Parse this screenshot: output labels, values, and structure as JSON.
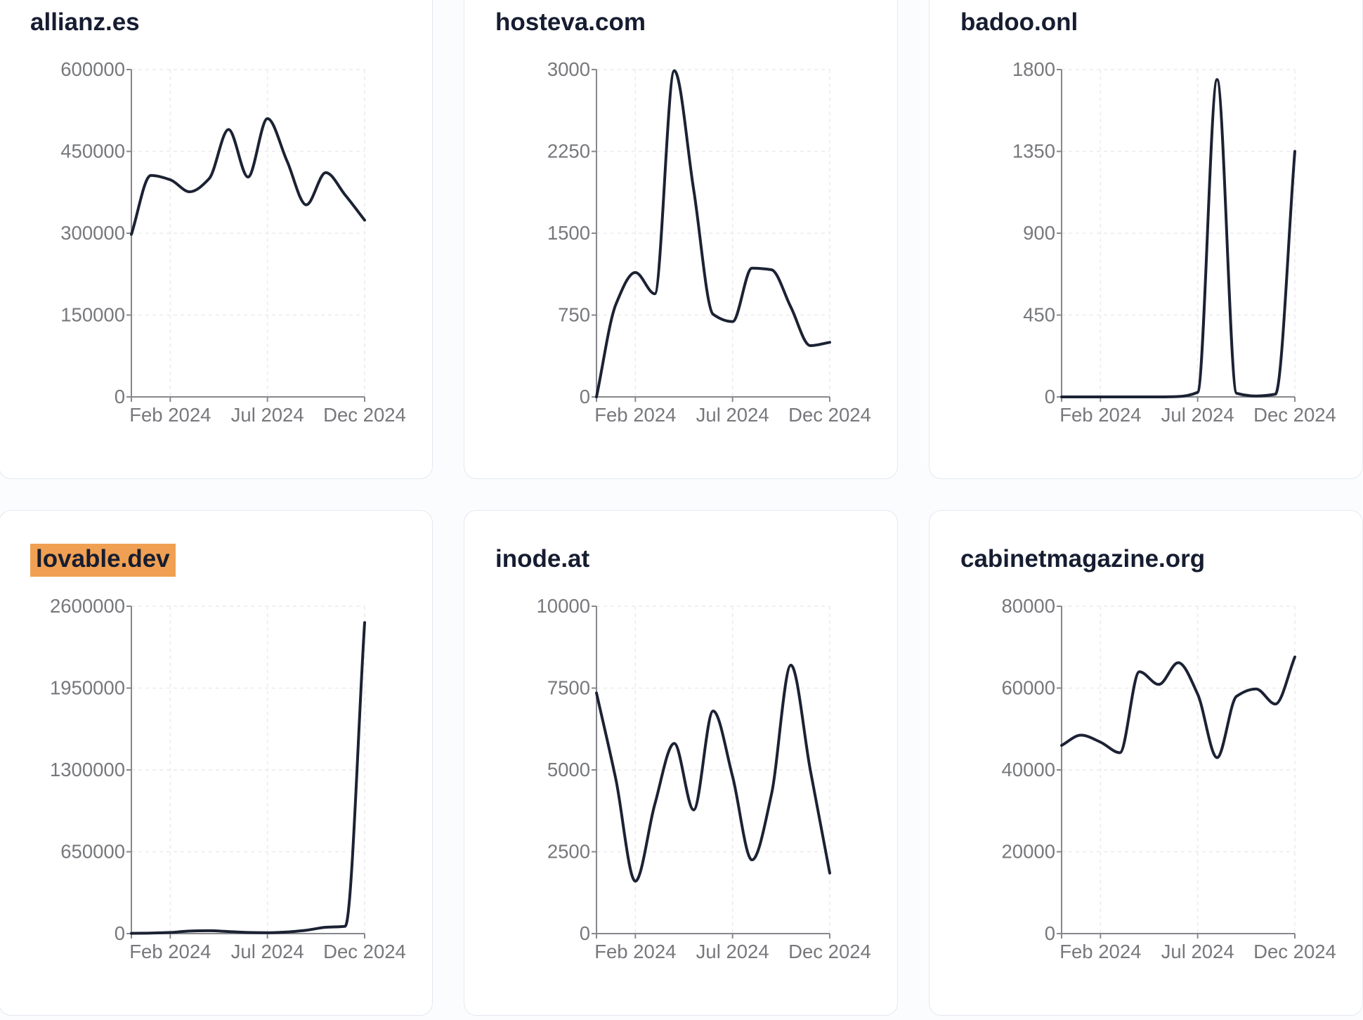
{
  "style": {
    "page_bg": "#fbfcfd",
    "card_bg": "#ffffff",
    "card_border": "#e4e8f0",
    "title_color": "#161d31",
    "highlight_color": "#f0a052",
    "line_color": "#1b2233",
    "axis_color": "#86888d",
    "grid_color": "#ebebee",
    "tick_label_color": "#77787c"
  },
  "chart_data": [
    {
      "type": "line",
      "title": "allianz.es",
      "title_highlighted": false,
      "x": [
        "Dec 2023",
        "Jan 2024",
        "Feb 2024",
        "Mar 2024",
        "Apr 2024",
        "May 2024",
        "Jun 2024",
        "Jul 2024",
        "Aug 2024",
        "Sep 2024",
        "Oct 2024",
        "Nov 2024",
        "Dec 2024"
      ],
      "values": [
        298000,
        406000,
        398000,
        376000,
        400000,
        490000,
        403000,
        510000,
        433000,
        352000,
        411000,
        370000,
        324000
      ],
      "ylim": [
        0,
        600000
      ],
      "y_tick_labels": [
        "0",
        "150000",
        "300000",
        "450000",
        "600000"
      ],
      "x_tick_labels": [
        "Feb 2024",
        "Jul 2024",
        "Dec 2024"
      ],
      "grid": "dashed",
      "legend": "none"
    },
    {
      "type": "line",
      "title": "hosteva.com",
      "title_highlighted": false,
      "x": [
        "Dec 2023",
        "Jan 2024",
        "Feb 2024",
        "Mar 2024",
        "Apr 2024",
        "May 2024",
        "Jun 2024",
        "Jul 2024",
        "Aug 2024",
        "Sep 2024",
        "Oct 2024",
        "Nov 2024",
        "Dec 2024"
      ],
      "values": [
        0,
        850,
        1140,
        945,
        2990,
        1900,
        757,
        690,
        1180,
        1165,
        822,
        470,
        500
      ],
      "ylim": [
        0,
        3000
      ],
      "y_tick_labels": [
        "0",
        "750",
        "1500",
        "2250",
        "3000"
      ],
      "x_tick_labels": [
        "Feb 2024",
        "Jul 2024",
        "Dec 2024"
      ],
      "grid": "dashed",
      "legend": "none"
    },
    {
      "type": "line",
      "title": "badoo.onl",
      "title_highlighted": false,
      "x": [
        "Dec 2023",
        "Jan 2024",
        "Feb 2024",
        "Mar 2024",
        "Apr 2024",
        "May 2024",
        "Jun 2024",
        "Jul 2024",
        "Aug 2024",
        "Sep 2024",
        "Oct 2024",
        "Nov 2024",
        "Dec 2024"
      ],
      "values": [
        0,
        0,
        0,
        0,
        0,
        0,
        2,
        25,
        1745,
        20,
        5,
        15,
        1350
      ],
      "ylim": [
        0,
        1800
      ],
      "y_tick_labels": [
        "0",
        "450",
        "900",
        "1350",
        "1800"
      ],
      "x_tick_labels": [
        "Feb 2024",
        "Jul 2024",
        "Dec 2024"
      ],
      "grid": "dashed",
      "legend": "none"
    },
    {
      "type": "line",
      "title": "lovable.dev",
      "title_highlighted": true,
      "x": [
        "Dec 2023",
        "Jan 2024",
        "Feb 2024",
        "Mar 2024",
        "Apr 2024",
        "May 2024",
        "Jun 2024",
        "Jul 2024",
        "Aug 2024",
        "Sep 2024",
        "Oct 2024",
        "Nov 2024",
        "Dec 2024"
      ],
      "values": [
        2000,
        4000,
        9000,
        20000,
        23000,
        16000,
        9000,
        7000,
        13000,
        27000,
        50000,
        58000,
        2470000
      ],
      "ylim": [
        0,
        2600000
      ],
      "y_tick_labels": [
        "0",
        "650000",
        "1300000",
        "1950000",
        "2600000"
      ],
      "x_tick_labels": [
        "Feb 2024",
        "Jul 2024",
        "Dec 2024"
      ],
      "grid": "dashed",
      "legend": "none"
    },
    {
      "type": "line",
      "title": "inode.at",
      "title_highlighted": false,
      "x": [
        "Dec 2023",
        "Jan 2024",
        "Feb 2024",
        "Mar 2024",
        "Apr 2024",
        "May 2024",
        "Jun 2024",
        "Jul 2024",
        "Aug 2024",
        "Sep 2024",
        "Oct 2024",
        "Nov 2024",
        "Dec 2024"
      ],
      "values": [
        7350,
        4700,
        1600,
        3950,
        5810,
        3780,
        6800,
        4800,
        2250,
        4250,
        8200,
        5000,
        1850
      ],
      "ylim": [
        0,
        10000
      ],
      "y_tick_labels": [
        "0",
        "2500",
        "5000",
        "7500",
        "10000"
      ],
      "x_tick_labels": [
        "Feb 2024",
        "Jul 2024",
        "Dec 2024"
      ],
      "grid": "dashed",
      "legend": "none"
    },
    {
      "type": "line",
      "title": "cabinetmagazine.org",
      "title_highlighted": false,
      "x": [
        "Dec 2023",
        "Jan 2024",
        "Feb 2024",
        "Mar 2024",
        "Apr 2024",
        "May 2024",
        "Jun 2024",
        "Jul 2024",
        "Aug 2024",
        "Sep 2024",
        "Oct 2024",
        "Nov 2024",
        "Dec 2024"
      ],
      "values": [
        46000,
        48500,
        46800,
        44200,
        64000,
        60900,
        66200,
        58500,
        43000,
        58000,
        59800,
        56100,
        67600
      ],
      "ylim": [
        0,
        80000
      ],
      "y_tick_labels": [
        "0",
        "20000",
        "40000",
        "60000",
        "80000"
      ],
      "x_tick_labels": [
        "Feb 2024",
        "Jul 2024",
        "Dec 2024"
      ],
      "grid": "dashed",
      "legend": "none"
    }
  ]
}
